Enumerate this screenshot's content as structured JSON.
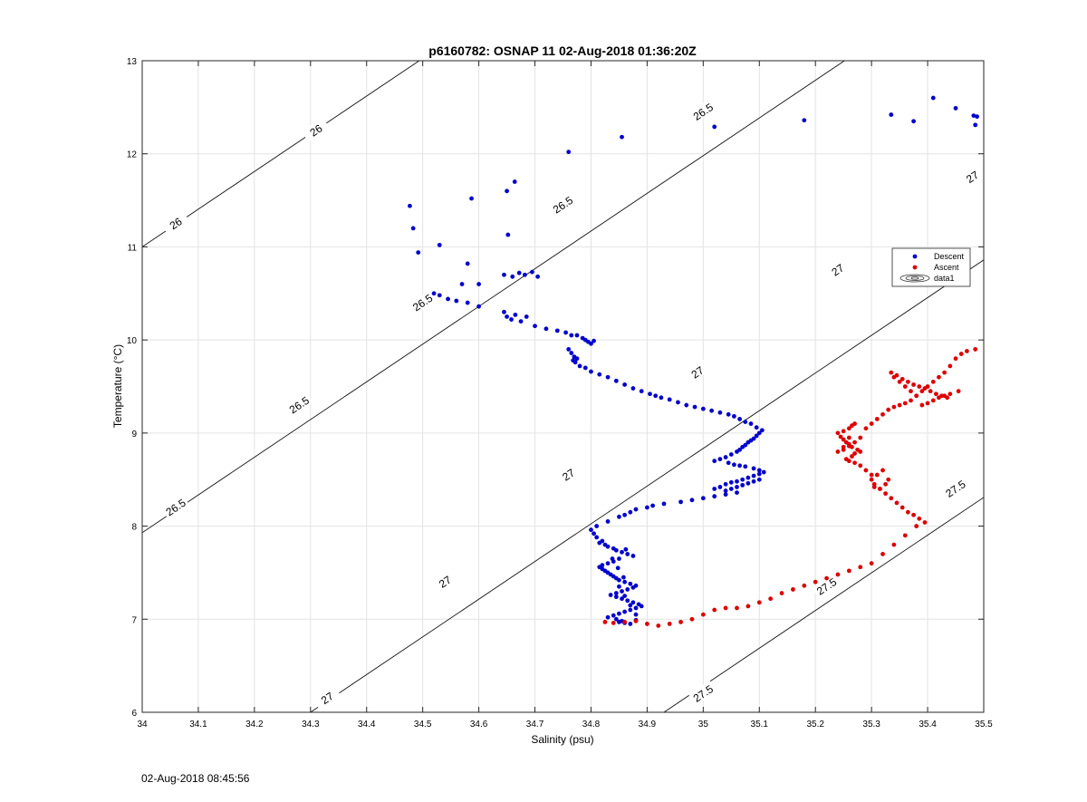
{
  "chart_data": {
    "type": "scatter",
    "title": "p6160782: OSNAP 11 02-Aug-2018 01:36:20Z",
    "xlabel": "Salinity (psu)",
    "ylabel": "Temperature (°C)",
    "xlim": [
      34,
      35.5
    ],
    "ylim": [
      6,
      13
    ],
    "xticks": [
      34,
      34.1,
      34.2,
      34.3,
      34.4,
      34.5,
      34.6,
      34.7,
      34.8,
      34.9,
      35,
      35.1,
      35.2,
      35.3,
      35.4,
      35.5
    ],
    "yticks": [
      6,
      7,
      8,
      9,
      10,
      11,
      12,
      13
    ],
    "grid": true,
    "legend_position": "right, upper-middle",
    "legend": [
      {
        "label": "Descent",
        "color": "#0000cc",
        "marker": "dot"
      },
      {
        "label": "Ascent",
        "color": "#dd0000",
        "marker": "dot"
      },
      {
        "label": "data1",
        "marker": "contour"
      }
    ],
    "contours": [
      {
        "label": "26",
        "sigma": 26,
        "label_points": [
          [
            34.31,
            12.25
          ],
          [
            34.06,
            11.25
          ]
        ]
      },
      {
        "label": "26.5",
        "sigma": 26.5,
        "label_points": [
          [
            35.0,
            12.45
          ],
          [
            34.75,
            11.45
          ],
          [
            34.5,
            10.4
          ],
          [
            34.28,
            9.3
          ],
          [
            34.06,
            8.2
          ]
        ]
      },
      {
        "label": "27",
        "sigma": 27,
        "label_points": [
          [
            35.48,
            11.75
          ],
          [
            35.24,
            10.75
          ],
          [
            34.99,
            9.65
          ],
          [
            34.76,
            8.55
          ],
          [
            34.54,
            7.4
          ],
          [
            34.33,
            6.15
          ]
        ]
      },
      {
        "label": "27.5",
        "sigma": 27.5,
        "label_points": [
          [
            35.45,
            8.4
          ],
          [
            35.22,
            7.35
          ],
          [
            35.0,
            6.2
          ]
        ]
      }
    ],
    "series": [
      {
        "name": "Descent",
        "color": "#0000cc",
        "x": [
          34.477,
          34.483,
          34.492,
          34.53,
          34.587,
          34.58,
          34.65,
          34.664,
          34.652,
          34.76,
          34.855,
          35.02,
          35.18,
          35.335,
          35.375,
          35.41,
          35.45,
          35.482,
          35.488,
          35.485,
          34.57,
          34.6,
          34.645,
          34.66,
          34.672,
          34.682,
          34.695,
          34.705,
          34.52,
          34.53,
          34.545,
          34.56,
          34.58,
          34.6,
          34.645,
          34.65,
          34.658,
          34.665,
          34.675,
          34.685,
          34.7,
          34.72,
          34.74,
          34.755,
          34.765,
          34.775,
          34.785,
          34.79,
          34.795,
          34.8,
          34.805,
          34.76,
          34.765,
          34.77,
          34.775,
          34.768,
          34.772,
          34.78,
          34.79,
          34.8,
          34.815,
          34.83,
          34.845,
          34.86,
          34.875,
          34.89,
          34.905,
          34.915,
          34.925,
          34.94,
          34.955,
          34.97,
          34.985,
          35.0,
          35.015,
          35.03,
          35.045,
          35.055,
          35.065,
          35.075,
          35.085,
          35.095,
          35.105,
          35.1,
          35.095,
          35.09,
          35.085,
          35.08,
          35.075,
          35.07,
          35.065,
          35.06,
          35.05,
          35.04,
          35.03,
          35.02,
          35.045,
          35.055,
          35.065,
          35.075,
          35.09,
          35.1,
          35.108,
          35.1,
          35.09,
          35.08,
          35.07,
          35.06,
          35.05,
          35.04,
          35.03,
          35.02,
          35.04,
          35.05,
          35.06,
          35.07,
          35.08,
          35.09,
          35.1,
          35.06,
          35.04,
          35.02,
          35.0,
          34.98,
          34.96,
          34.93,
          34.91,
          34.9,
          34.88,
          34.87,
          34.86,
          34.85,
          34.83,
          34.81,
          34.8,
          34.805,
          34.81,
          34.82,
          34.815,
          34.825,
          34.83,
          34.84,
          34.845,
          34.855,
          34.865,
          34.875,
          34.85,
          34.84,
          34.83,
          34.82,
          34.815,
          34.82,
          34.825,
          34.83,
          34.835,
          34.84,
          34.845,
          34.85,
          34.86,
          34.87,
          34.88,
          34.875,
          34.865,
          34.855,
          34.845,
          34.835,
          34.845,
          34.855,
          34.865,
          34.875,
          34.885,
          34.89,
          34.88,
          34.87,
          34.86,
          34.85,
          34.84,
          34.83,
          34.845,
          34.855,
          34.85,
          34.86,
          34.87,
          34.88,
          34.88,
          34.87,
          34.86,
          34.85,
          34.858,
          34.848,
          34.838,
          34.862
        ],
        "y": [
          11.44,
          11.2,
          10.94,
          11.02,
          11.52,
          10.82,
          11.6,
          11.7,
          11.13,
          12.02,
          12.18,
          12.29,
          12.36,
          12.42,
          12.35,
          12.6,
          12.49,
          12.41,
          12.4,
          12.31,
          10.6,
          10.6,
          10.7,
          10.68,
          10.72,
          10.7,
          10.73,
          10.68,
          10.5,
          10.48,
          10.44,
          10.42,
          10.4,
          10.36,
          10.3,
          10.25,
          10.22,
          10.27,
          10.2,
          10.25,
          10.15,
          10.12,
          10.1,
          10.08,
          10.05,
          10.05,
          10.02,
          10.0,
          9.98,
          9.96,
          9.99,
          9.9,
          9.86,
          9.82,
          9.8,
          9.78,
          9.76,
          9.72,
          9.7,
          9.66,
          9.63,
          9.6,
          9.56,
          9.52,
          9.48,
          9.45,
          9.42,
          9.4,
          9.38,
          9.36,
          9.33,
          9.3,
          9.28,
          9.26,
          9.24,
          9.22,
          9.2,
          9.18,
          9.15,
          9.12,
          9.1,
          9.06,
          9.03,
          9.0,
          8.97,
          8.94,
          8.92,
          8.9,
          8.87,
          8.85,
          8.82,
          8.8,
          8.77,
          8.74,
          8.72,
          8.7,
          8.68,
          8.66,
          8.65,
          8.64,
          8.62,
          8.6,
          8.58,
          8.56,
          8.54,
          8.52,
          8.5,
          8.48,
          8.47,
          8.45,
          8.42,
          8.4,
          8.38,
          8.4,
          8.42,
          8.44,
          8.46,
          8.48,
          8.5,
          8.36,
          8.34,
          8.32,
          8.3,
          8.28,
          8.26,
          8.24,
          8.22,
          8.2,
          8.18,
          8.15,
          8.12,
          8.1,
          8.05,
          8.0,
          7.96,
          7.92,
          7.88,
          7.84,
          7.82,
          7.8,
          7.78,
          7.76,
          7.74,
          7.72,
          7.7,
          7.68,
          7.65,
          7.62,
          7.6,
          7.58,
          7.56,
          7.54,
          7.52,
          7.5,
          7.48,
          7.46,
          7.44,
          7.42,
          7.4,
          7.38,
          7.36,
          7.34,
          7.32,
          7.3,
          7.28,
          7.26,
          7.24,
          7.22,
          7.2,
          7.18,
          7.16,
          7.14,
          7.12,
          7.1,
          7.08,
          7.06,
          7.04,
          7.02,
          7.0,
          6.98,
          6.97,
          6.96,
          6.95,
          6.99,
          7.05,
          7.15,
          7.25,
          7.35,
          7.45,
          7.55,
          7.65,
          7.75
        ]
      },
      {
        "name": "Ascent",
        "color": "#dd0000",
        "x": [
          34.825,
          34.84,
          34.86,
          34.88,
          34.9,
          34.92,
          34.94,
          34.96,
          34.98,
          35.0,
          35.02,
          35.04,
          35.06,
          35.08,
          35.1,
          35.12,
          35.14,
          35.16,
          35.18,
          35.2,
          35.22,
          35.24,
          35.26,
          35.28,
          35.3,
          35.32,
          35.34,
          35.36,
          35.38,
          35.395,
          35.385,
          35.375,
          35.365,
          35.355,
          35.345,
          35.335,
          35.325,
          35.315,
          35.305,
          35.3,
          35.31,
          35.32,
          35.33,
          35.325,
          35.315,
          35.305,
          35.3,
          35.29,
          35.28,
          35.27,
          35.26,
          35.255,
          35.265,
          35.27,
          35.28,
          35.275,
          35.265,
          35.26,
          35.255,
          35.25,
          35.245,
          35.24,
          35.25,
          35.26,
          35.265,
          35.27,
          35.26,
          35.25,
          35.24,
          35.25,
          35.26,
          35.27,
          35.28,
          35.29,
          35.3,
          35.31,
          35.32,
          35.33,
          35.34,
          35.35,
          35.36,
          35.37,
          35.38,
          35.39,
          35.4,
          35.41,
          35.42,
          35.43,
          35.44,
          35.45,
          35.46,
          35.47,
          35.485,
          35.455,
          35.44,
          35.43,
          35.42,
          35.41,
          35.4,
          35.39,
          35.38,
          35.37,
          35.36,
          35.35,
          35.34,
          35.335,
          35.345,
          35.355,
          35.365,
          35.375,
          35.385,
          35.395,
          35.405,
          35.415,
          35.425,
          35.435
        ],
        "y": [
          6.97,
          6.96,
          6.97,
          6.98,
          6.95,
          6.93,
          6.95,
          6.97,
          7.0,
          7.05,
          7.1,
          7.12,
          7.12,
          7.14,
          7.18,
          7.22,
          7.28,
          7.32,
          7.36,
          7.4,
          7.44,
          7.48,
          7.52,
          7.56,
          7.6,
          7.7,
          7.8,
          7.9,
          8.0,
          8.04,
          8.08,
          8.12,
          8.15,
          8.2,
          8.25,
          8.3,
          8.35,
          8.4,
          8.45,
          8.5,
          8.55,
          8.6,
          8.5,
          8.45,
          8.4,
          8.42,
          8.55,
          8.6,
          8.65,
          8.68,
          8.7,
          8.72,
          8.75,
          8.78,
          8.8,
          8.82,
          8.85,
          8.88,
          8.9,
          8.93,
          8.96,
          9.0,
          9.02,
          9.05,
          9.08,
          9.1,
          8.95,
          8.85,
          8.8,
          8.82,
          8.86,
          8.9,
          8.95,
          9.05,
          9.1,
          9.15,
          9.2,
          9.25,
          9.28,
          9.3,
          9.32,
          9.35,
          9.4,
          9.45,
          9.5,
          9.55,
          9.6,
          9.65,
          9.72,
          9.8,
          9.85,
          9.88,
          9.9,
          9.45,
          9.42,
          9.4,
          9.38,
          9.35,
          9.32,
          9.3,
          9.4,
          9.45,
          9.5,
          9.55,
          9.6,
          9.65,
          9.62,
          9.58,
          9.55,
          9.52,
          9.5,
          9.48,
          9.45,
          9.42,
          9.4,
          9.38
        ]
      }
    ]
  },
  "footer_timestamp": "02-Aug-2018 08:45:56"
}
